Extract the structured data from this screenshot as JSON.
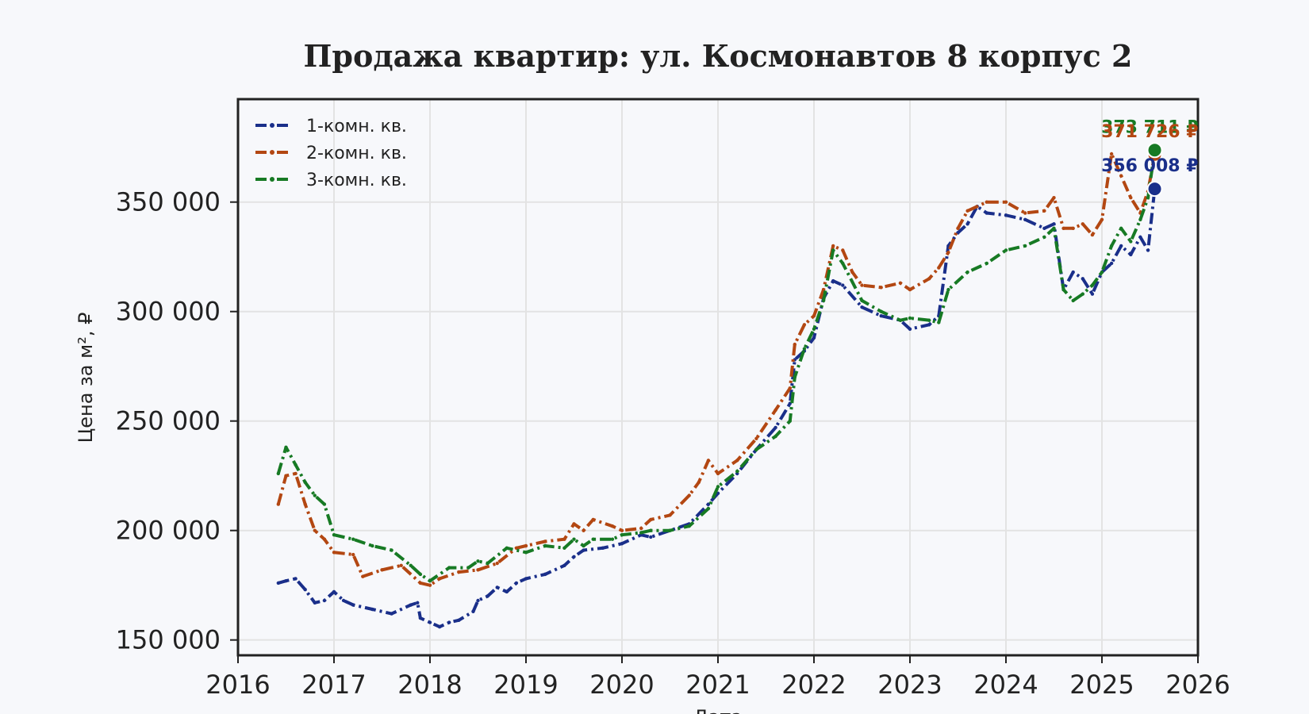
{
  "chart_data": {
    "type": "line",
    "title": "Продажа квартир: ул. Космонавтов 8 корпус 2",
    "xlabel": "Дата",
    "ylabel": "Цена за м², ₽",
    "xlim": [
      2016,
      2026
    ],
    "ylim": [
      143000,
      397000
    ],
    "x_ticks": [
      2016,
      2017,
      2018,
      2019,
      2020,
      2021,
      2022,
      2023,
      2024,
      2025,
      2026
    ],
    "x_tick_labels": [
      "2016",
      "2017",
      "2018",
      "2019",
      "2020",
      "2021",
      "2022",
      "2023",
      "2024",
      "2025",
      "2026"
    ],
    "y_ticks": [
      150000,
      200000,
      250000,
      300000,
      350000
    ],
    "y_tick_labels": [
      "150 000",
      "200 000",
      "250 000",
      "300 000",
      "350 000"
    ],
    "grid": true,
    "legend_position": "top-left",
    "series": [
      {
        "name": "1-комн. кв.",
        "color": "#1a2f8a",
        "x": [
          2016.42,
          2016.5,
          2016.6,
          2016.7,
          2016.8,
          2016.9,
          2017.0,
          2017.1,
          2017.2,
          2017.4,
          2017.6,
          2017.8,
          2017.87,
          2017.9,
          2018.0,
          2018.1,
          2018.2,
          2018.3,
          2018.45,
          2018.5,
          2018.6,
          2018.7,
          2018.8,
          2018.9,
          2019.0,
          2019.2,
          2019.4,
          2019.5,
          2019.6,
          2019.8,
          2020.0,
          2020.2,
          2020.3,
          2020.5,
          2020.7,
          2020.9,
          2021.0,
          2021.2,
          2021.4,
          2021.6,
          2021.75,
          2021.8,
          2021.9,
          2022.0,
          2022.1,
          2022.2,
          2022.3,
          2022.5,
          2022.7,
          2022.9,
          2023.0,
          2023.2,
          2023.3,
          2023.4,
          2023.5,
          2023.6,
          2023.7,
          2023.8,
          2024.0,
          2024.2,
          2024.4,
          2024.5,
          2024.6,
          2024.7,
          2024.8,
          2024.9,
          2025.0,
          2025.1,
          2025.2,
          2025.3,
          2025.4,
          2025.48,
          2025.55
        ],
        "values": [
          176000,
          177000,
          178000,
          173000,
          167000,
          168000,
          172000,
          168000,
          166000,
          164000,
          162000,
          166000,
          167000,
          160000,
          158000,
          156000,
          158000,
          159000,
          163000,
          168000,
          170000,
          174000,
          172000,
          176000,
          178000,
          180000,
          184000,
          188000,
          191000,
          192000,
          194000,
          198000,
          197000,
          200000,
          203000,
          212000,
          217000,
          226000,
          237000,
          247000,
          258000,
          278000,
          282000,
          288000,
          306000,
          314000,
          312000,
          302000,
          298000,
          296000,
          292000,
          294000,
          298000,
          330000,
          336000,
          340000,
          348000,
          345000,
          344000,
          342000,
          338000,
          340000,
          310000,
          318000,
          315000,
          308000,
          318000,
          322000,
          330000,
          326000,
          334000,
          328000,
          356008
        ]
      },
      {
        "name": "2-комн. кв.",
        "color": "#b34712",
        "x": [
          2016.42,
          2016.5,
          2016.6,
          2016.7,
          2016.8,
          2016.9,
          2017.0,
          2017.2,
          2017.3,
          2017.5,
          2017.7,
          2017.9,
          2018.0,
          2018.1,
          2018.3,
          2018.5,
          2018.7,
          2018.9,
          2019.0,
          2019.2,
          2019.4,
          2019.5,
          2019.6,
          2019.7,
          2019.9,
          2020.0,
          2020.2,
          2020.3,
          2020.5,
          2020.7,
          2020.8,
          2020.9,
          2021.0,
          2021.2,
          2021.4,
          2021.6,
          2021.75,
          2021.8,
          2021.9,
          2022.0,
          2022.1,
          2022.2,
          2022.3,
          2022.4,
          2022.5,
          2022.7,
          2022.9,
          2023.0,
          2023.2,
          2023.3,
          2023.4,
          2023.5,
          2023.6,
          2023.8,
          2024.0,
          2024.2,
          2024.4,
          2024.5,
          2024.6,
          2024.7,
          2024.8,
          2024.9,
          2025.0,
          2025.1,
          2025.2,
          2025.3,
          2025.4,
          2025.48,
          2025.55
        ],
        "values": [
          212000,
          225000,
          226000,
          212000,
          200000,
          196000,
          190000,
          189000,
          179000,
          182000,
          184000,
          176000,
          175000,
          178000,
          181000,
          182000,
          185000,
          192000,
          193000,
          195000,
          196000,
          203000,
          200000,
          205000,
          202000,
          200000,
          201000,
          205000,
          207000,
          216000,
          222000,
          232000,
          226000,
          232000,
          242000,
          255000,
          265000,
          285000,
          294000,
          298000,
          310000,
          330000,
          328000,
          318000,
          312000,
          311000,
          313000,
          310000,
          315000,
          320000,
          327000,
          338000,
          346000,
          350000,
          350000,
          345000,
          346000,
          352000,
          338000,
          338000,
          340000,
          335000,
          342000,
          372000,
          362000,
          352000,
          345000,
          355000,
          371726
        ]
      },
      {
        "name": "3-комн. кв.",
        "color": "#177a24",
        "x": [
          2016.42,
          2016.5,
          2016.6,
          2016.7,
          2016.8,
          2016.9,
          2017.0,
          2017.2,
          2017.4,
          2017.6,
          2017.8,
          2017.9,
          2018.0,
          2018.2,
          2018.4,
          2018.5,
          2018.6,
          2018.8,
          2019.0,
          2019.2,
          2019.4,
          2019.5,
          2019.6,
          2019.7,
          2019.9,
          2020.0,
          2020.2,
          2020.3,
          2020.5,
          2020.7,
          2020.9,
          2021.0,
          2021.2,
          2021.4,
          2021.6,
          2021.75,
          2021.8,
          2021.9,
          2022.0,
          2022.1,
          2022.2,
          2022.3,
          2022.5,
          2022.7,
          2022.9,
          2023.0,
          2023.2,
          2023.3,
          2023.4,
          2023.6,
          2023.8,
          2024.0,
          2024.2,
          2024.4,
          2024.5,
          2024.6,
          2024.7,
          2024.8,
          2024.9,
          2025.0,
          2025.1,
          2025.2,
          2025.3,
          2025.4,
          2025.48,
          2025.55
        ],
        "values": [
          226000,
          238000,
          230000,
          222000,
          216000,
          212000,
          198000,
          196000,
          193000,
          191000,
          184000,
          180000,
          177000,
          183000,
          183000,
          186000,
          185000,
          192000,
          190000,
          193000,
          192000,
          196000,
          193000,
          196000,
          196000,
          198000,
          199000,
          200000,
          200000,
          202000,
          210000,
          220000,
          227000,
          237000,
          243000,
          250000,
          270000,
          283000,
          292000,
          305000,
          328000,
          322000,
          305000,
          300000,
          296000,
          297000,
          296000,
          295000,
          310000,
          318000,
          322000,
          328000,
          330000,
          334000,
          338000,
          310000,
          305000,
          308000,
          312000,
          318000,
          330000,
          338000,
          332000,
          342000,
          352000,
          373711
        ]
      }
    ],
    "end_labels": [
      {
        "series": 2,
        "text": "373 711 ₽"
      },
      {
        "series": 1,
        "text": "371 726 ₽"
      },
      {
        "series": 0,
        "text": "356 008 ₽"
      }
    ]
  }
}
